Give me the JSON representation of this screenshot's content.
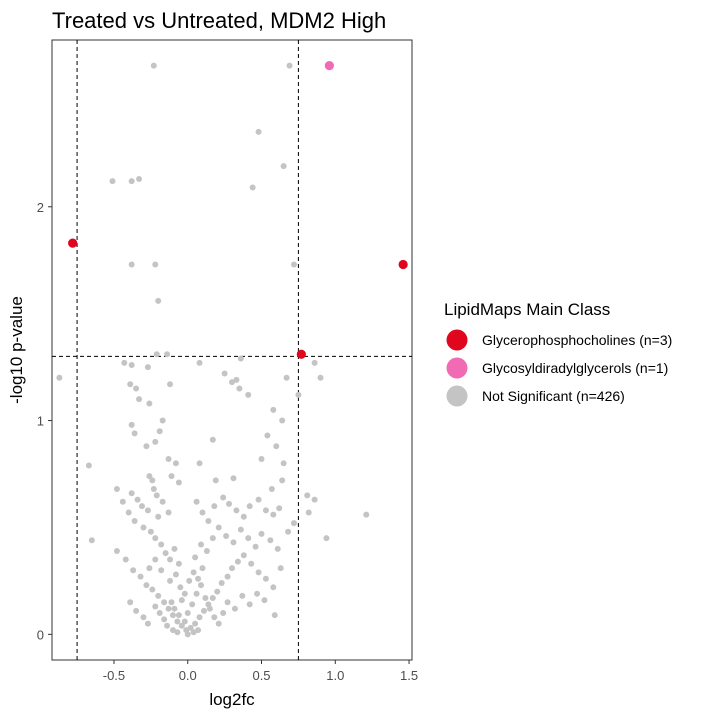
{
  "chart_data": {
    "type": "scatter",
    "title": "Treated vs Untreated, MDM2 High",
    "xlabel": "log2fc",
    "ylabel": "-log10 p-value",
    "xlim": [
      -0.92,
      1.52
    ],
    "ylim": [
      -0.12,
      2.78
    ],
    "x_ticks": [
      -0.5,
      0.0,
      0.5,
      1.0,
      1.5
    ],
    "x_tick_labels": [
      "-0.5",
      "0.0",
      "0.5",
      "1.0",
      "1.5"
    ],
    "y_ticks": [
      0,
      1,
      2
    ],
    "y_tick_labels": [
      "0",
      "1",
      "2"
    ],
    "threshold_lines": {
      "vertical": [
        -0.75,
        0.75
      ],
      "horizontal": [
        1.3
      ]
    },
    "grid": false,
    "legend": {
      "title": "LipidMaps Main Class",
      "placement": "right",
      "entries": [
        {
          "label": "Glycerophosphocholines (n=3)",
          "color": "#e0061e"
        },
        {
          "label": "Glycosyldiradylglycerols (n=1)",
          "color": "#f06ab4"
        },
        {
          "label": "Not Significant (n=426)",
          "color": "#c4c4c4"
        }
      ]
    },
    "series": [
      {
        "name": "Glycerophosphocholines (n=3)",
        "color": "#e0061e",
        "points": [
          [
            -0.78,
            1.83
          ],
          [
            1.46,
            1.73
          ],
          [
            0.77,
            1.31
          ]
        ]
      },
      {
        "name": "Glycosyldiradylglycerols (n=1)",
        "color": "#f06ab4",
        "points": [
          [
            0.96,
            2.66
          ]
        ]
      },
      {
        "name": "Not Significant (n=426)",
        "color": "#c4c4c4",
        "points": [
          [
            -0.23,
            2.66
          ],
          [
            0.69,
            2.66
          ],
          [
            0.48,
            2.35
          ],
          [
            0.65,
            2.19
          ],
          [
            -0.33,
            2.13
          ],
          [
            -0.51,
            2.12
          ],
          [
            -0.38,
            2.12
          ],
          [
            0.44,
            2.09
          ],
          [
            -0.38,
            1.73
          ],
          [
            -0.22,
            1.73
          ],
          [
            0.72,
            1.73
          ],
          [
            -0.2,
            1.56
          ],
          [
            -0.21,
            1.31
          ],
          [
            -0.14,
            1.31
          ],
          [
            -0.87,
            1.2
          ],
          [
            0.67,
            1.2
          ],
          [
            -0.43,
            1.27
          ],
          [
            -0.38,
            1.26
          ],
          [
            -0.27,
            1.25
          ],
          [
            -0.35,
            1.15
          ],
          [
            0.08,
            1.27
          ],
          [
            0.25,
            1.22
          ],
          [
            0.3,
            1.18
          ],
          [
            0.35,
            1.15
          ],
          [
            0.41,
            1.12
          ],
          [
            0.36,
            1.29
          ],
          [
            0.86,
            1.27
          ],
          [
            0.9,
            1.2
          ],
          [
            0.75,
            1.12
          ],
          [
            -0.39,
            1.17
          ],
          [
            -0.12,
            1.17
          ],
          [
            0.33,
            1.19
          ],
          [
            -0.33,
            1.1
          ],
          [
            -0.26,
            1.08
          ],
          [
            -0.17,
            1.0
          ],
          [
            0.58,
            1.05
          ],
          [
            0.64,
            1.0
          ],
          [
            -0.38,
            0.98
          ],
          [
            -0.36,
            0.94
          ],
          [
            -0.19,
            0.95
          ],
          [
            -0.22,
            0.9
          ],
          [
            0.17,
            0.91
          ],
          [
            0.54,
            0.93
          ],
          [
            0.6,
            0.88
          ],
          [
            0.5,
            0.82
          ],
          [
            -0.28,
            0.88
          ],
          [
            -0.13,
            0.82
          ],
          [
            -0.08,
            0.8
          ],
          [
            0.08,
            0.8
          ],
          [
            0.65,
            0.8
          ],
          [
            -0.67,
            0.79
          ],
          [
            -0.26,
            0.74
          ],
          [
            -0.24,
            0.72
          ],
          [
            -0.23,
            0.68
          ],
          [
            -0.21,
            0.65
          ],
          [
            -0.11,
            0.74
          ],
          [
            -0.06,
            0.71
          ],
          [
            0.19,
            0.72
          ],
          [
            0.31,
            0.73
          ],
          [
            0.64,
            0.72
          ],
          [
            0.57,
            0.68
          ],
          [
            -0.48,
            0.68
          ],
          [
            -0.38,
            0.66
          ],
          [
            -0.34,
            0.63
          ],
          [
            -0.31,
            0.6
          ],
          [
            -0.27,
            0.58
          ],
          [
            -0.2,
            0.55
          ],
          [
            -0.17,
            0.62
          ],
          [
            -0.13,
            0.57
          ],
          [
            0.06,
            0.62
          ],
          [
            0.1,
            0.57
          ],
          [
            0.14,
            0.53
          ],
          [
            0.18,
            0.6
          ],
          [
            0.24,
            0.64
          ],
          [
            0.28,
            0.61
          ],
          [
            0.33,
            0.58
          ],
          [
            0.38,
            0.55
          ],
          [
            0.42,
            0.6
          ],
          [
            0.48,
            0.63
          ],
          [
            0.53,
            0.58
          ],
          [
            0.58,
            0.56
          ],
          [
            0.62,
            0.59
          ],
          [
            0.81,
            0.65
          ],
          [
            0.86,
            0.63
          ],
          [
            0.82,
            0.57
          ],
          [
            -0.44,
            0.62
          ],
          [
            -0.4,
            0.57
          ],
          [
            -0.36,
            0.53
          ],
          [
            -0.3,
            0.5
          ],
          [
            -0.25,
            0.48
          ],
          [
            -0.22,
            0.45
          ],
          [
            -0.18,
            0.42
          ],
          [
            -0.15,
            0.38
          ],
          [
            -0.12,
            0.35
          ],
          [
            -0.09,
            0.4
          ],
          [
            -0.06,
            0.33
          ],
          [
            0.05,
            0.36
          ],
          [
            0.09,
            0.42
          ],
          [
            0.13,
            0.39
          ],
          [
            0.17,
            0.45
          ],
          [
            0.21,
            0.5
          ],
          [
            0.26,
            0.46
          ],
          [
            0.31,
            0.43
          ],
          [
            0.36,
            0.49
          ],
          [
            0.41,
            0.45
          ],
          [
            0.46,
            0.41
          ],
          [
            0.5,
            0.47
          ],
          [
            0.56,
            0.44
          ],
          [
            0.61,
            0.4
          ],
          [
            0.68,
            0.48
          ],
          [
            0.72,
            0.52
          ],
          [
            1.21,
            0.56
          ],
          [
            0.94,
            0.45
          ],
          [
            -0.65,
            0.44
          ],
          [
            -0.48,
            0.39
          ],
          [
            -0.42,
            0.35
          ],
          [
            -0.37,
            0.3
          ],
          [
            -0.32,
            0.27
          ],
          [
            -0.28,
            0.23
          ],
          [
            -0.24,
            0.21
          ],
          [
            -0.2,
            0.18
          ],
          [
            -0.16,
            0.15
          ],
          [
            -0.13,
            0.12
          ],
          [
            -0.1,
            0.09
          ],
          [
            -0.07,
            0.06
          ],
          [
            -0.04,
            0.04
          ],
          [
            -0.01,
            0.02
          ],
          [
            0.02,
            0.03
          ],
          [
            0.05,
            0.05
          ],
          [
            0.08,
            0.08
          ],
          [
            0.11,
            0.11
          ],
          [
            0.14,
            0.14
          ],
          [
            0.17,
            0.17
          ],
          [
            0.2,
            0.2
          ],
          [
            0.23,
            0.24
          ],
          [
            0.27,
            0.27
          ],
          [
            0.3,
            0.31
          ],
          [
            0.34,
            0.34
          ],
          [
            0.38,
            0.37
          ],
          [
            0.43,
            0.33
          ],
          [
            0.48,
            0.29
          ],
          [
            0.53,
            0.26
          ],
          [
            0.58,
            0.22
          ],
          [
            0.63,
            0.31
          ],
          [
            0.59,
            0.09
          ],
          [
            -0.39,
            0.15
          ],
          [
            -0.35,
            0.11
          ],
          [
            -0.3,
            0.08
          ],
          [
            -0.27,
            0.05
          ],
          [
            -0.22,
            0.13
          ],
          [
            -0.19,
            0.1
          ],
          [
            -0.16,
            0.07
          ],
          [
            -0.14,
            0.04
          ],
          [
            -0.11,
            0.15
          ],
          [
            -0.09,
            0.12
          ],
          [
            -0.06,
            0.09
          ],
          [
            -0.04,
            0.16
          ],
          [
            -0.02,
            0.06
          ],
          [
            0.0,
            0.1
          ],
          [
            0.03,
            0.14
          ],
          [
            0.06,
            0.19
          ],
          [
            0.09,
            0.23
          ],
          [
            0.12,
            0.17
          ],
          [
            0.15,
            0.12
          ],
          [
            0.18,
            0.08
          ],
          [
            0.21,
            0.05
          ],
          [
            0.24,
            0.1
          ],
          [
            0.27,
            0.15
          ],
          [
            0.32,
            0.12
          ],
          [
            0.37,
            0.18
          ],
          [
            0.42,
            0.14
          ],
          [
            0.47,
            0.19
          ],
          [
            0.52,
            0.16
          ],
          [
            -0.12,
            0.25
          ],
          [
            -0.08,
            0.28
          ],
          [
            -0.05,
            0.22
          ],
          [
            -0.02,
            0.19
          ],
          [
            0.01,
            0.25
          ],
          [
            0.04,
            0.29
          ],
          [
            0.07,
            0.26
          ],
          [
            0.1,
            0.31
          ],
          [
            -0.18,
            0.3
          ],
          [
            -0.22,
            0.35
          ],
          [
            -0.26,
            0.31
          ],
          [
            -0.1,
            0.02
          ],
          [
            -0.07,
            0.01
          ],
          [
            0.0,
            0.0
          ],
          [
            0.04,
            0.01
          ],
          [
            0.07,
            0.02
          ]
        ]
      }
    ]
  }
}
